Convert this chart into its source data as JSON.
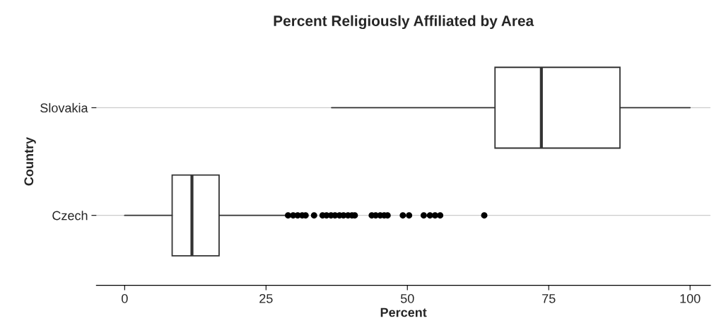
{
  "chart_data": {
    "type": "box",
    "title": "Percent Religiously Affiliated by Area",
    "xlabel": "Percent",
    "ylabel": "Country",
    "orientation": "horizontal",
    "categories": [
      "Slovakia",
      "Czech"
    ],
    "boxes": [
      {
        "low": 36.6,
        "q1": 65.5,
        "median": 73.7,
        "q3": 87.6,
        "high": 100
      },
      {
        "low": 0,
        "q1": 8.4,
        "median": 11.9,
        "q3": 16.7,
        "high": 28.8,
        "outliers": [
          28.9,
          29.8,
          30.6,
          31.4,
          32.0,
          33.5,
          35.0,
          35.7,
          36.5,
          37.2,
          38.0,
          38.7,
          39.5,
          40.2,
          40.7,
          43.7,
          44.4,
          45.2,
          45.9,
          46.5,
          49.2,
          50.3,
          52.9,
          54.0,
          54.9,
          55.8,
          63.6
        ]
      }
    ],
    "color": "#333333",
    "xlim": [
      -5,
      103.6
    ],
    "xticks": [
      0,
      25,
      50,
      75,
      100
    ],
    "grid": "y"
  }
}
